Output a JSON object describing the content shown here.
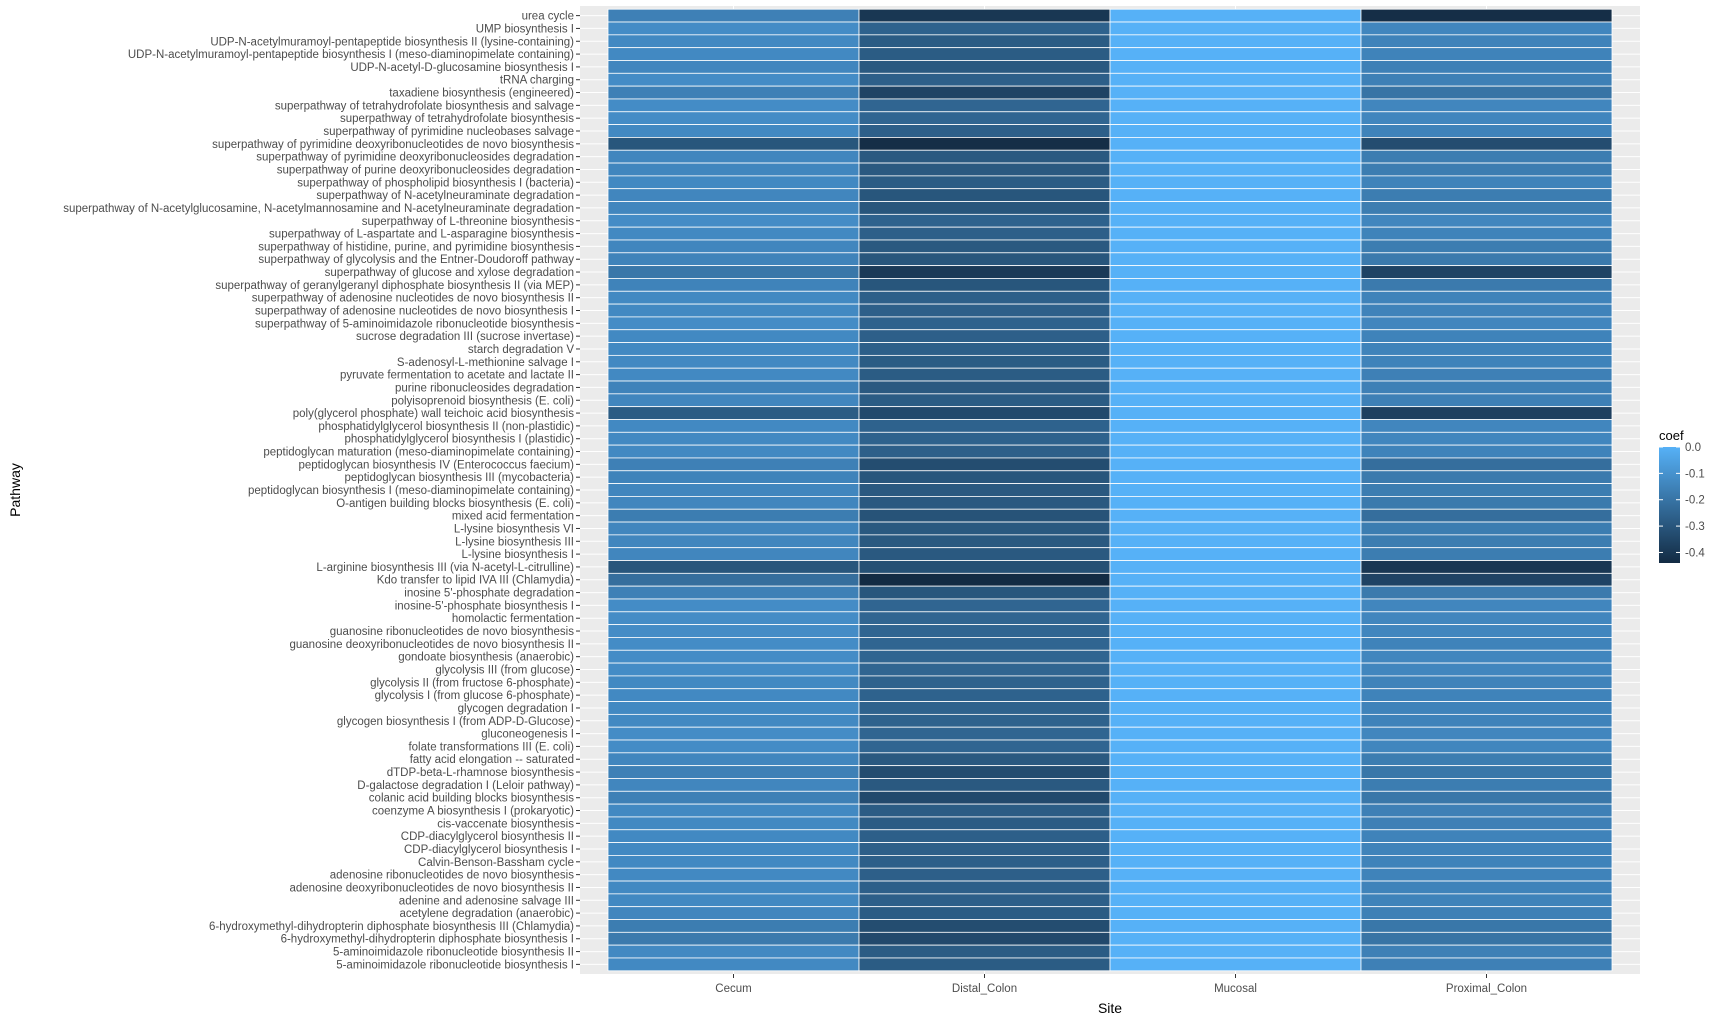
{
  "chart_data": {
    "type": "heatmap",
    "title": "",
    "xlabel": "Site",
    "ylabel": "Pathway",
    "x_categories": [
      "Cecum",
      "Distal_Colon",
      "Mucosal",
      "Proximal_Colon"
    ],
    "y_categories": [
      "urea cycle",
      "UMP biosynthesis I",
      "UDP-N-acetylmuramoyl-pentapeptide biosynthesis II (lysine-containing)",
      "UDP-N-acetylmuramoyl-pentapeptide biosynthesis I (meso-diaminopimelate containing)",
      "UDP-N-acetyl-D-glucosamine biosynthesis I",
      "tRNA charging",
      "taxadiene biosynthesis (engineered)",
      "superpathway of tetrahydrofolate biosynthesis and salvage",
      "superpathway of tetrahydrofolate biosynthesis",
      "superpathway of pyrimidine nucleobases salvage",
      "superpathway of pyrimidine deoxyribonucleotides de novo biosynthesis",
      "superpathway of pyrimidine deoxyribonucleosides degradation",
      "superpathway of purine deoxyribonucleosides degradation",
      "superpathway of phospholipid biosynthesis I (bacteria)",
      "superpathway of N-acetylneuraminate degradation",
      "superpathway of N-acetylglucosamine, N-acetylmannosamine and N-acetylneuraminate degradation",
      "superpathway of L-threonine biosynthesis",
      "superpathway of L-aspartate and L-asparagine biosynthesis",
      "superpathway of histidine, purine, and pyrimidine biosynthesis",
      "superpathway of glycolysis and the Entner-Doudoroff pathway",
      "superpathway of glucose and xylose degradation",
      "superpathway of geranylgeranyl diphosphate biosynthesis II (via MEP)",
      "superpathway of adenosine nucleotides de novo biosynthesis II",
      "superpathway of adenosine nucleotides de novo biosynthesis I",
      "superpathway of 5-aminoimidazole ribonucleotide biosynthesis",
      "sucrose degradation III (sucrose invertase)",
      "starch degradation V",
      "S-adenosyl-L-methionine salvage I",
      "pyruvate fermentation to acetate and lactate II",
      "purine ribonucleosides degradation",
      "polyisoprenoid biosynthesis (E. coli)",
      "poly(glycerol phosphate) wall teichoic acid biosynthesis",
      "phosphatidylglycerol biosynthesis II (non-plastidic)",
      "phosphatidylglycerol biosynthesis I (plastidic)",
      "peptidoglycan maturation (meso-diaminopimelate containing)",
      "peptidoglycan biosynthesis IV (Enterococcus faecium)",
      "peptidoglycan biosynthesis III (mycobacteria)",
      "peptidoglycan biosynthesis I (meso-diaminopimelate containing)",
      "O-antigen building blocks biosynthesis (E. coli)",
      "mixed acid fermentation",
      "L-lysine biosynthesis VI",
      "L-lysine biosynthesis III",
      "L-lysine biosynthesis I",
      "L-arginine biosynthesis III (via N-acetyl-L-citrulline)",
      "Kdo transfer to lipid IVA III (Chlamydia)",
      "inosine 5'-phosphate degradation",
      "inosine-5'-phosphate biosynthesis I",
      "homolactic fermentation",
      "guanosine ribonucleotides de novo biosynthesis",
      "guanosine deoxyribonucleotides de novo biosynthesis II",
      "gondoate biosynthesis (anaerobic)",
      "glycolysis III (from glucose)",
      "glycolysis II (from fructose 6-phosphate)",
      "glycolysis I (from glucose 6-phosphate)",
      "glycogen degradation I",
      "glycogen biosynthesis I (from ADP-D-Glucose)",
      "gluconeogenesis I",
      "folate transformations III (E. coli)",
      "fatty acid elongation -- saturated",
      "dTDP-beta-L-rhamnose biosynthesis",
      "D-galactose degradation I (Leloir pathway)",
      "colanic acid building blocks biosynthesis",
      "coenzyme A biosynthesis I (prokaryotic)",
      "cis-vaccenate biosynthesis",
      "CDP-diacylglycerol biosynthesis II",
      "CDP-diacylglycerol biosynthesis I",
      "Calvin-Benson-Bassham cycle",
      "adenosine ribonucleotides de novo biosynthesis",
      "adenosine deoxyribonucleotides de novo biosynthesis II",
      "adenine and adenosine salvage III",
      "acetylene degradation (anaerobic)",
      "6-hydroxymethyl-dihydropterin diphosphate biosynthesis III (Chlamydia)",
      "6-hydroxymethyl-dihydropterin diphosphate biosynthesis I",
      "5-aminoimidazole ribonucleotide biosynthesis II",
      "5-aminoimidazole ribonucleotide biosynthesis I"
    ],
    "values": [
      [
        -0.16,
        -0.4,
        0.0,
        -0.43
      ],
      [
        -0.12,
        -0.26,
        0.0,
        -0.14
      ],
      [
        -0.13,
        -0.28,
        0.0,
        -0.15
      ],
      [
        -0.13,
        -0.28,
        0.0,
        -0.15
      ],
      [
        -0.14,
        -0.29,
        0.0,
        -0.16
      ],
      [
        -0.12,
        -0.27,
        0.0,
        -0.16
      ],
      [
        -0.16,
        -0.36,
        0.0,
        -0.2
      ],
      [
        -0.12,
        -0.25,
        0.0,
        -0.14
      ],
      [
        -0.12,
        -0.25,
        0.0,
        -0.14
      ],
      [
        -0.13,
        -0.27,
        0.0,
        -0.15
      ],
      [
        -0.3,
        -0.43,
        0.0,
        -0.33
      ],
      [
        -0.14,
        -0.29,
        0.0,
        -0.17
      ],
      [
        -0.14,
        -0.29,
        0.0,
        -0.17
      ],
      [
        -0.13,
        -0.28,
        0.0,
        -0.15
      ],
      [
        -0.14,
        -0.3,
        0.0,
        -0.17
      ],
      [
        -0.14,
        -0.3,
        0.0,
        -0.17
      ],
      [
        -0.12,
        -0.26,
        0.0,
        -0.14
      ],
      [
        -0.13,
        -0.27,
        0.0,
        -0.15
      ],
      [
        -0.14,
        -0.29,
        0.0,
        -0.17
      ],
      [
        -0.15,
        -0.3,
        0.0,
        -0.18
      ],
      [
        -0.19,
        -0.39,
        0.0,
        -0.36
      ],
      [
        -0.15,
        -0.3,
        0.0,
        -0.18
      ],
      [
        -0.13,
        -0.27,
        0.0,
        -0.15
      ],
      [
        -0.13,
        -0.27,
        0.0,
        -0.15
      ],
      [
        -0.12,
        -0.26,
        0.0,
        -0.14
      ],
      [
        -0.13,
        -0.27,
        0.0,
        -0.15
      ],
      [
        -0.13,
        -0.27,
        0.0,
        -0.15
      ],
      [
        -0.13,
        -0.28,
        0.0,
        -0.15
      ],
      [
        -0.13,
        -0.28,
        0.0,
        -0.16
      ],
      [
        -0.15,
        -0.29,
        0.0,
        -0.16
      ],
      [
        -0.14,
        -0.28,
        0.0,
        -0.16
      ],
      [
        -0.28,
        -0.34,
        0.0,
        -0.37
      ],
      [
        -0.13,
        -0.26,
        0.0,
        -0.14
      ],
      [
        -0.13,
        -0.26,
        0.0,
        -0.14
      ],
      [
        -0.13,
        -0.27,
        0.0,
        -0.15
      ],
      [
        -0.16,
        -0.33,
        0.0,
        -0.22
      ],
      [
        -0.15,
        -0.3,
        0.0,
        -0.18
      ],
      [
        -0.14,
        -0.29,
        0.0,
        -0.17
      ],
      [
        -0.14,
        -0.29,
        0.0,
        -0.18
      ],
      [
        -0.17,
        -0.31,
        0.0,
        -0.22
      ],
      [
        -0.14,
        -0.29,
        0.0,
        -0.17
      ],
      [
        -0.14,
        -0.29,
        0.0,
        -0.17
      ],
      [
        -0.14,
        -0.29,
        0.0,
        -0.17
      ],
      [
        -0.3,
        -0.32,
        0.0,
        -0.4
      ],
      [
        -0.22,
        -0.44,
        0.0,
        -0.36
      ],
      [
        -0.16,
        -0.3,
        0.0,
        -0.18
      ],
      [
        -0.12,
        -0.25,
        0.0,
        -0.14
      ],
      [
        -0.12,
        -0.25,
        0.0,
        -0.14
      ],
      [
        -0.12,
        -0.25,
        0.0,
        -0.14
      ],
      [
        -0.12,
        -0.25,
        0.0,
        -0.15
      ],
      [
        -0.12,
        -0.25,
        0.0,
        -0.14
      ],
      [
        -0.12,
        -0.25,
        0.0,
        -0.14
      ],
      [
        -0.13,
        -0.26,
        0.0,
        -0.15
      ],
      [
        -0.13,
        -0.26,
        0.0,
        -0.15
      ],
      [
        -0.13,
        -0.26,
        0.0,
        -0.15
      ],
      [
        -0.13,
        -0.26,
        0.0,
        -0.15
      ],
      [
        -0.12,
        -0.25,
        0.0,
        -0.14
      ],
      [
        -0.12,
        -0.25,
        0.0,
        -0.14
      ],
      [
        -0.14,
        -0.29,
        0.0,
        -0.17
      ],
      [
        -0.16,
        -0.33,
        0.0,
        -0.19
      ],
      [
        -0.14,
        -0.29,
        0.0,
        -0.17
      ],
      [
        -0.16,
        -0.34,
        0.0,
        -0.19
      ],
      [
        -0.13,
        -0.28,
        0.0,
        -0.16
      ],
      [
        -0.13,
        -0.28,
        0.0,
        -0.16
      ],
      [
        -0.13,
        -0.27,
        0.0,
        -0.15
      ],
      [
        -0.13,
        -0.27,
        0.0,
        -0.15
      ],
      [
        -0.13,
        -0.27,
        0.0,
        -0.15
      ],
      [
        -0.13,
        -0.27,
        0.0,
        -0.15
      ],
      [
        -0.13,
        -0.27,
        0.0,
        -0.15
      ],
      [
        -0.13,
        -0.27,
        0.0,
        -0.15
      ],
      [
        -0.14,
        -0.28,
        0.0,
        -0.16
      ],
      [
        -0.17,
        -0.33,
        0.0,
        -0.19
      ],
      [
        -0.18,
        -0.34,
        0.0,
        -0.2
      ],
      [
        -0.13,
        -0.28,
        0.0,
        -0.16
      ],
      [
        -0.13,
        -0.28,
        0.0,
        -0.16
      ]
    ],
    "legend": {
      "title": "coef",
      "position": "right",
      "ticks": [
        0.0,
        -0.1,
        -0.2,
        -0.3,
        -0.4
      ],
      "tick_labels": [
        "0.0",
        "-0.1",
        "-0.2",
        "-0.3",
        "-0.4"
      ],
      "range": [
        -0.44,
        0.0
      ]
    },
    "colors": {
      "high": "#56B1F7",
      "low": "#132B43",
      "panel_background": "#EBEBEB",
      "tile_border": "#FFFFFF"
    },
    "grid": true
  }
}
